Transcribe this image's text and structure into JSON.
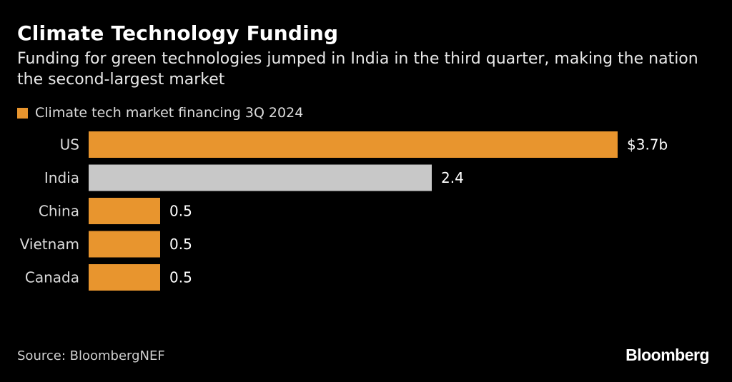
{
  "header": {
    "title": "Climate Technology Funding",
    "subtitle": "Funding for green technologies jumped in India in the third quarter, making the nation the second-largest market"
  },
  "legend": {
    "label": "Climate tech market financing 3Q 2024"
  },
  "footer": {
    "source": "Source: BloombergNEF",
    "logo": "Bloomberg"
  },
  "colors": {
    "accent": "#e8952e",
    "highlight": "#c8c8c8",
    "background": "#000000"
  },
  "chart_data": {
    "type": "bar",
    "orientation": "horizontal",
    "categories": [
      "US",
      "India",
      "China",
      "Vietnam",
      "Canada"
    ],
    "values": [
      3.7,
      2.4,
      0.5,
      0.5,
      0.5
    ],
    "value_labels": [
      "$3.7b",
      "2.4",
      "0.5",
      "0.5",
      "0.5"
    ],
    "highlighted_category": "India",
    "xlim": [
      0,
      3.7
    ],
    "grid": false,
    "legend_position": "top-left"
  }
}
